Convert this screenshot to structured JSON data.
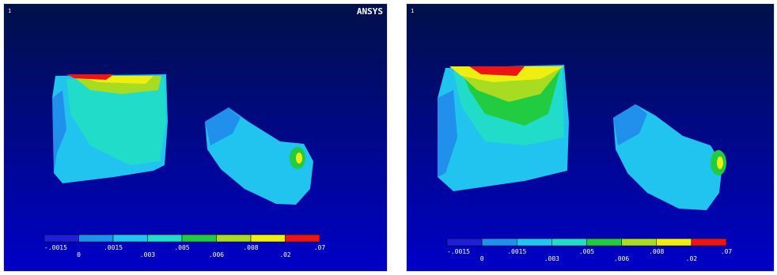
{
  "panels": [
    {
      "number": "1",
      "logo": "ANSYS",
      "legend": {
        "colors": [
          "#2020d8",
          "#2090ec",
          "#20c4ee",
          "#20dcc8",
          "#22cc40",
          "#a8dc20",
          "#f0ee10",
          "#ee1414"
        ],
        "labels": [
          "-.0015",
          "0",
          ".0015",
          ".003",
          ".005",
          ".006",
          ".008",
          ".02",
          ".07"
        ]
      }
    },
    {
      "number": "1",
      "legend": {
        "colors": [
          "#2020d8",
          "#2090ec",
          "#20c4ee",
          "#20dcc8",
          "#22cc40",
          "#a8dc20",
          "#f0ee10",
          "#ee1414"
        ],
        "labels": [
          "-.0015",
          "0",
          ".0015",
          ".003",
          ".005",
          ".006",
          ".008",
          ".02",
          ".07"
        ]
      }
    }
  ]
}
